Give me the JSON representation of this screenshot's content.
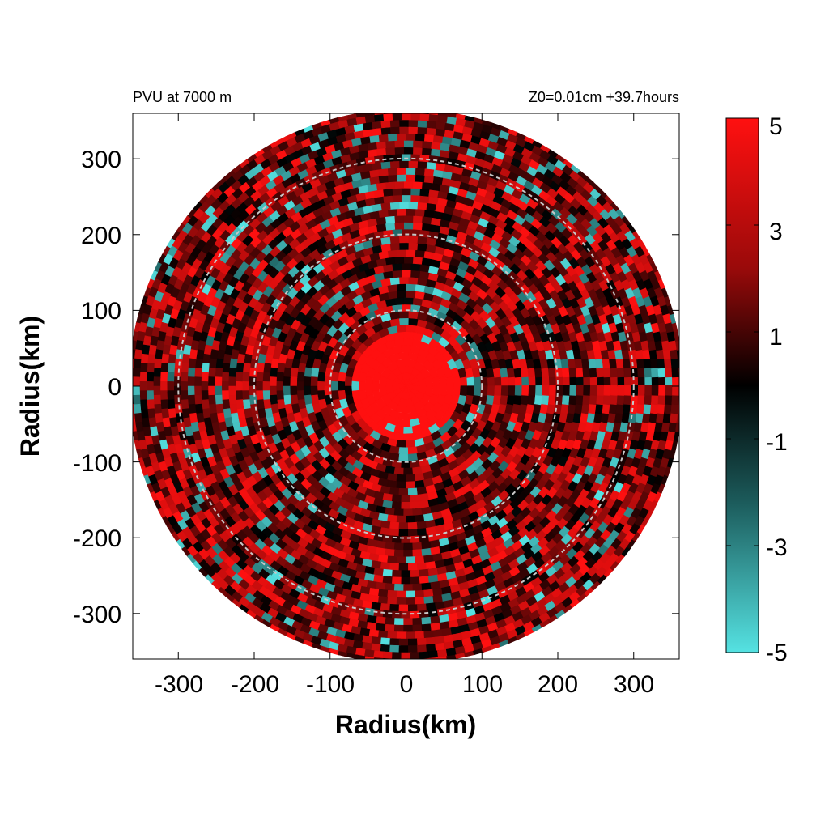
{
  "header": {
    "left_title": "PVU at  7000 m",
    "right_title": "Z0=0.01cm  +39.7hours"
  },
  "chart_data": {
    "type": "heatmap",
    "title": "PVU at  7000 m",
    "subtitle": "Z0=0.01cm  +39.7hours",
    "xlabel": "Radius(km)",
    "ylabel": "Radius(km)",
    "xlim": [
      -360,
      360
    ],
    "ylim": [
      -360,
      360
    ],
    "x_ticks": [
      -300,
      -200,
      -100,
      0,
      100,
      200,
      300
    ],
    "y_ticks": [
      -300,
      -200,
      -100,
      0,
      100,
      200,
      300
    ],
    "x_tick_labels": [
      "-300",
      "-200",
      "-100",
      "0",
      "100",
      "200",
      "300"
    ],
    "y_tick_labels": [
      "-300",
      "-200",
      "-100",
      "0",
      "100",
      "200",
      "300"
    ],
    "domain_radius_km": 365,
    "reference_circles_km": [
      100,
      200,
      300
    ],
    "eye_core": {
      "radius_km": 70,
      "value": 5
    },
    "colorbar": {
      "min": -5,
      "max": 5,
      "ticks": [
        5,
        3,
        1,
        -1,
        -3,
        -5
      ],
      "tick_labels": [
        "5",
        "3",
        "1",
        "-1",
        "-3",
        "-5"
      ],
      "colors": {
        "max": "#ff1010",
        "upper_mid": "#9a0a0a",
        "zero": "#000000",
        "lower_mid": "#1c5c5c",
        "min": "#55e2e2"
      }
    }
  }
}
